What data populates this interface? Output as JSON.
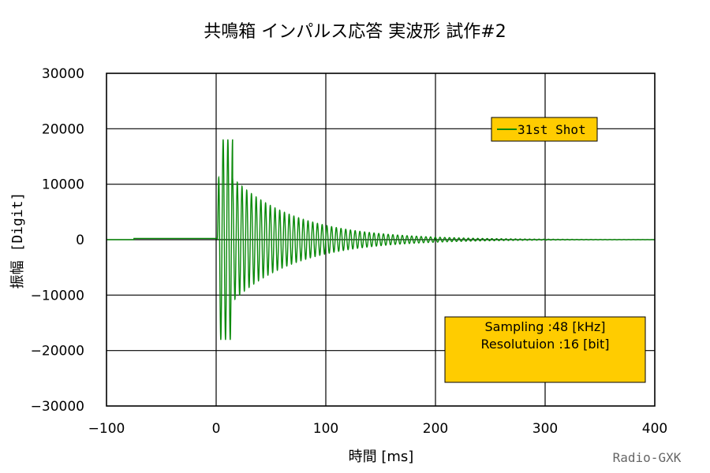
{
  "chart_data": {
    "type": "line",
    "title": "共鳴箱 インパルス応答 実波形 試作#2",
    "xlabel": "時間 [ms]",
    "ylabel": "振幅 [Digit]",
    "xlim": [
      -100,
      400
    ],
    "ylim": [
      -30000,
      30000
    ],
    "x_ticks": [
      -100,
      0,
      100,
      200,
      300,
      400
    ],
    "x_tick_labels": [
      "−100",
      "0",
      "100",
      "200",
      "300",
      "400"
    ],
    "y_ticks": [
      30000,
      20000,
      10000,
      0,
      -10000,
      -20000,
      -30000
    ],
    "y_tick_labels": [
      "30000",
      "20000",
      "10000",
      "0",
      "−10000",
      "−20000",
      "−30000"
    ],
    "grid": true,
    "legend_position": "top-right",
    "legend_background": "#ffcc00",
    "series": [
      {
        "name": "31st Shot",
        "color": "#0a8a0a",
        "onset_ms": 1,
        "peak_envelope": 18000,
        "ringing_period_ms": 4.3,
        "description_points": [
          {
            "x": 2,
            "y": 4000
          },
          {
            "x": 6,
            "y": 17500
          },
          {
            "x": 6,
            "y": -16500
          },
          {
            "x": 12,
            "y": 18000
          },
          {
            "x": 13,
            "y": -16000
          },
          {
            "x": 26,
            "y": 10500
          },
          {
            "x": 25,
            "y": -11500
          },
          {
            "x": 50,
            "y": 5000
          },
          {
            "x": 100,
            "y": 2500
          },
          {
            "x": 200,
            "y": 600
          },
          {
            "x": 300,
            "y": 250
          },
          {
            "x": 400,
            "y": 100
          }
        ]
      }
    ],
    "annotation": {
      "line1": "Sampling  :48 [kHz]",
      "line2": "Resolutuion :16 [bit]",
      "background": "#ffcc00"
    }
  },
  "footer": {
    "credit": "Radio-GXK"
  },
  "colors": {
    "series": "#0a8a0a",
    "box": "#ffcc00",
    "grid": "#000000"
  }
}
